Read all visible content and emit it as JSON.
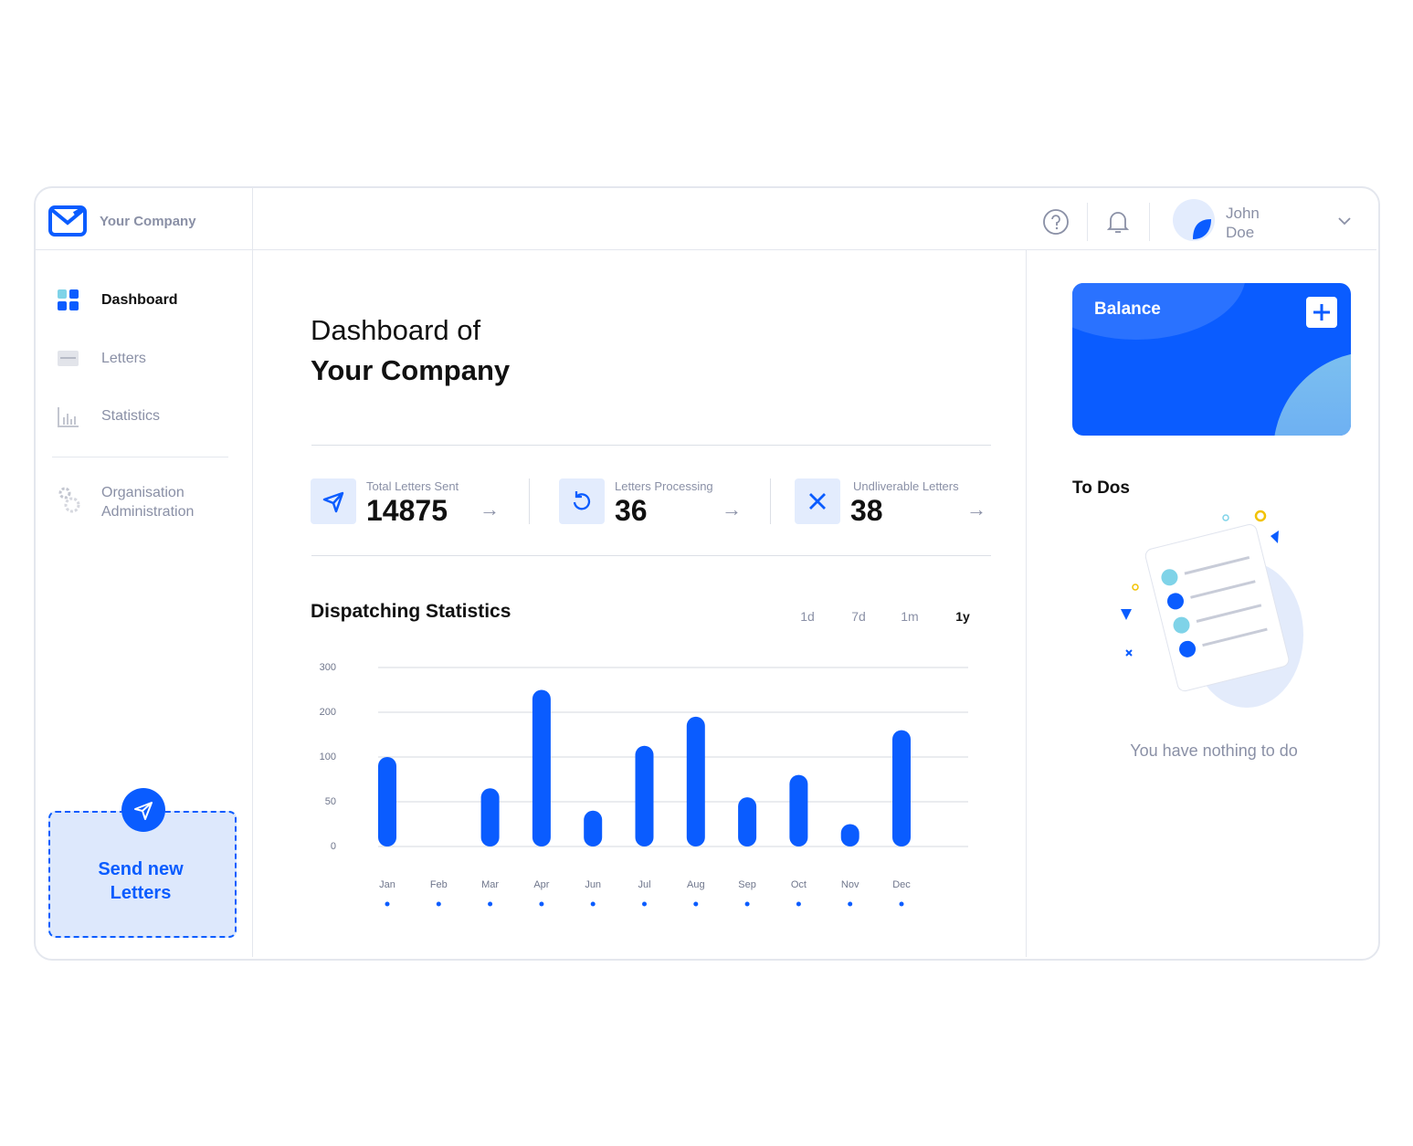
{
  "brand": {
    "name": "Your Company"
  },
  "user": {
    "first_name": "John",
    "last_name": "Doe"
  },
  "nav": [
    {
      "label": "Dashboard"
    },
    {
      "label": "Letters"
    },
    {
      "label": "Statistics"
    },
    {
      "label": "Organisation Administration"
    }
  ],
  "send_button": {
    "label": "Send new Letters"
  },
  "heading": {
    "line1": "Dashboard of",
    "line2": "Your Company"
  },
  "stats": [
    {
      "label": "Total Letters Sent",
      "value": 14875
    },
    {
      "label": "Letters Processing",
      "value": 36
    },
    {
      "label": "Undliverable Letters",
      "value": 38
    }
  ],
  "chart_data": {
    "type": "bar",
    "title": "Dispatching Statistics",
    "ranges": [
      "1d",
      "7d",
      "1m",
      "1y"
    ],
    "active_range": "1y",
    "categories": [
      "Jan",
      "Feb",
      "Mar",
      "Apr",
      "Jun",
      "Jul",
      "Aug",
      "Sep",
      "Oct",
      "Nov",
      "Dec"
    ],
    "values": [
      100,
      0,
      65,
      250,
      40,
      125,
      190,
      55,
      80,
      25,
      160
    ],
    "color": "#0a5cff",
    "ylim": [
      0,
      300
    ],
    "yticks": [
      0,
      50,
      100,
      200,
      300
    ],
    "grid": true
  },
  "balance": {
    "title": "Balance"
  },
  "todos": {
    "title": "To Dos",
    "empty_message": "You have nothing to do"
  }
}
